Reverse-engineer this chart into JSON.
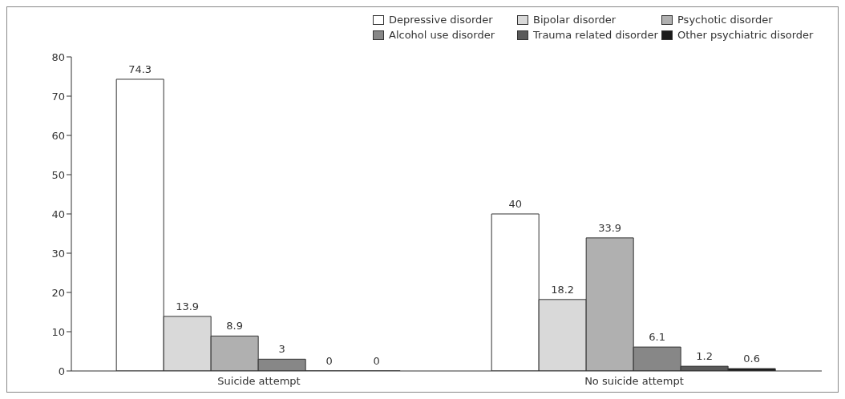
{
  "chart_data": {
    "type": "bar",
    "categories": [
      "Suicide attempt",
      "No suicide attempt"
    ],
    "series": [
      {
        "name": "Depressive disorder",
        "color": "#ffffff",
        "values": [
          74.3,
          40
        ]
      },
      {
        "name": "Bipolar disorder",
        "color": "#d9d9d9",
        "values": [
          13.9,
          18.2
        ]
      },
      {
        "name": "Psychotic disorder",
        "color": "#b0b0b0",
        "values": [
          8.9,
          33.9
        ]
      },
      {
        "name": "Alcohol use disorder",
        "color": "#878787",
        "values": [
          3,
          6.1
        ]
      },
      {
        "name": "Trauma related disorder",
        "color": "#5a5a5a",
        "values": [
          0,
          1.2
        ]
      },
      {
        "name": "Other psychiatric disorder",
        "color": "#1a1a1a",
        "values": [
          0,
          0.6
        ]
      }
    ],
    "ylim": [
      0,
      80
    ],
    "yticks": [
      0,
      10,
      20,
      30,
      40,
      50,
      60,
      70,
      80
    ],
    "grid": false,
    "legend": "top right",
    "data_labels": true
  }
}
